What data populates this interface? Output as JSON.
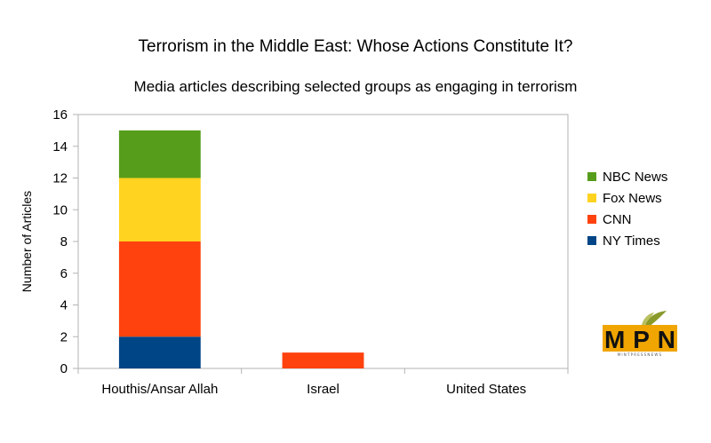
{
  "chart_data": {
    "type": "bar",
    "stacked": true,
    "title": "Terrorism in the Middle East: Whose Actions Constitute It?",
    "subtitle": "Media articles describing selected groups as engaging in terrorism",
    "xlabel": "",
    "ylabel": "Number of Articles",
    "ylim": [
      0,
      16
    ],
    "yticks": [
      0,
      2,
      4,
      6,
      8,
      10,
      12,
      14,
      16
    ],
    "categories": [
      "Houthis/Ansar Allah",
      "Israel",
      "United States"
    ],
    "series": [
      {
        "name": "NY Times",
        "color": "#004586",
        "values": [
          2,
          0,
          0
        ]
      },
      {
        "name": "CNN",
        "color": "#ff420e",
        "values": [
          6,
          1,
          0
        ]
      },
      {
        "name": "Fox News",
        "color": "#ffd320",
        "values": [
          4,
          0,
          0
        ]
      },
      {
        "name": "NBC News",
        "color": "#579d1c",
        "values": [
          3,
          0,
          0
        ]
      }
    ],
    "legend": {
      "position": "right",
      "order": [
        "NBC News",
        "Fox News",
        "CNN",
        "NY Times"
      ]
    },
    "grid": false
  },
  "logo": {
    "text": "MPN",
    "subtext": "MINTPRESSNEWS",
    "colors": {
      "box": "#f0a500",
      "text": "#111111",
      "leaf": "#8a9a2a"
    }
  }
}
